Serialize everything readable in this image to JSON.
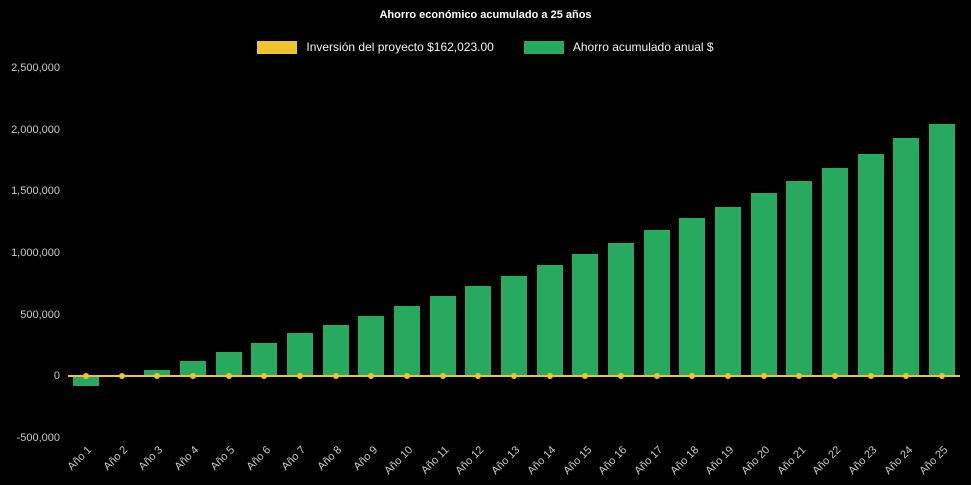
{
  "chart_data": {
    "type": "bar",
    "title": "Ahorro económico acumulado a 25 años",
    "categories": [
      "Año 1",
      "Año 2",
      "Año 3",
      "Año 4",
      "Año 5",
      "Año 6",
      "Año 7",
      "Año 8",
      "Año 9",
      "Año 10",
      "Año 11",
      "Año 12",
      "Año 13",
      "Año 14",
      "Año 15",
      "Año 16",
      "Año 17",
      "Año 18",
      "Año 19",
      "Año 20",
      "Año 21",
      "Año 22",
      "Año 23",
      "Año 24",
      "Año 25"
    ],
    "series": [
      {
        "name": "Ahorro acumulado anual $",
        "type": "bar",
        "color": "#27a95f",
        "values": [
          -75000,
          10000,
          55000,
          125000,
          200000,
          270000,
          350000,
          420000,
          490000,
          570000,
          650000,
          730000,
          810000,
          900000,
          990000,
          1080000,
          1190000,
          1280000,
          1370000,
          1490000,
          1580000,
          1690000,
          1800000,
          1930000,
          2050000
        ]
      },
      {
        "name": "Inversión del proyecto $162,023.00",
        "type": "line",
        "color": "#f0c330",
        "values": [
          0,
          0,
          0,
          0,
          0,
          0,
          0,
          0,
          0,
          0,
          0,
          0,
          0,
          0,
          0,
          0,
          0,
          0,
          0,
          0,
          0,
          0,
          0,
          0,
          0
        ]
      }
    ],
    "xlabel": "",
    "ylabel": "",
    "ylim": [
      -500000,
      2500000
    ],
    "y_ticks": [
      -500000,
      0,
      500000,
      1000000,
      1500000,
      2000000,
      2500000
    ],
    "y_tick_labels": [
      "-500,000",
      "0",
      "500,000",
      "1,000,000",
      "1,500,000",
      "2,000,000",
      "2,500,000"
    ],
    "grid": false,
    "legend_position": "top",
    "background": "#000000",
    "text_color": "#ffffff",
    "tick_label_color": "#c9c9c9"
  }
}
